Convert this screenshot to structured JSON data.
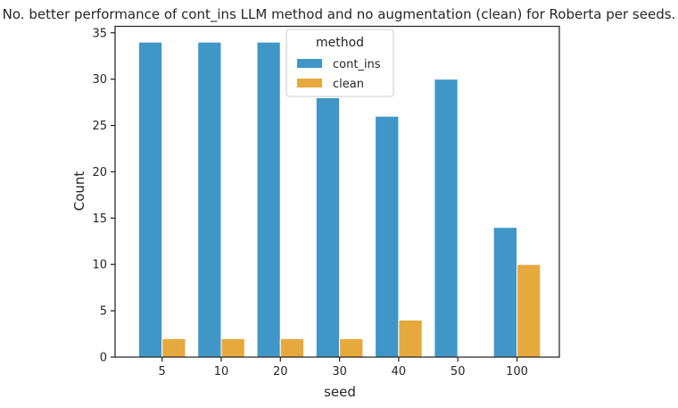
{
  "chart_data": {
    "type": "bar",
    "title": "No. better performance of cont_ins LLM method and no augmentation (clean) for Roberta per seeds.",
    "xlabel": "seed",
    "ylabel": "Count",
    "categories": [
      "5",
      "10",
      "20",
      "30",
      "40",
      "50",
      "100"
    ],
    "series": [
      {
        "name": "cont_ins",
        "values": [
          34,
          34,
          34,
          28,
          26,
          30,
          14
        ],
        "color": "#4196c8"
      },
      {
        "name": "clean",
        "values": [
          2,
          2,
          2,
          2,
          4,
          0,
          10
        ],
        "color": "#e6a93e"
      }
    ],
    "yticks": [
      0,
      5,
      10,
      15,
      20,
      25,
      30,
      35
    ],
    "ylim": [
      0,
      35.7
    ],
    "grid": false,
    "legend": {
      "title": "method",
      "placement": "upper-center"
    }
  }
}
